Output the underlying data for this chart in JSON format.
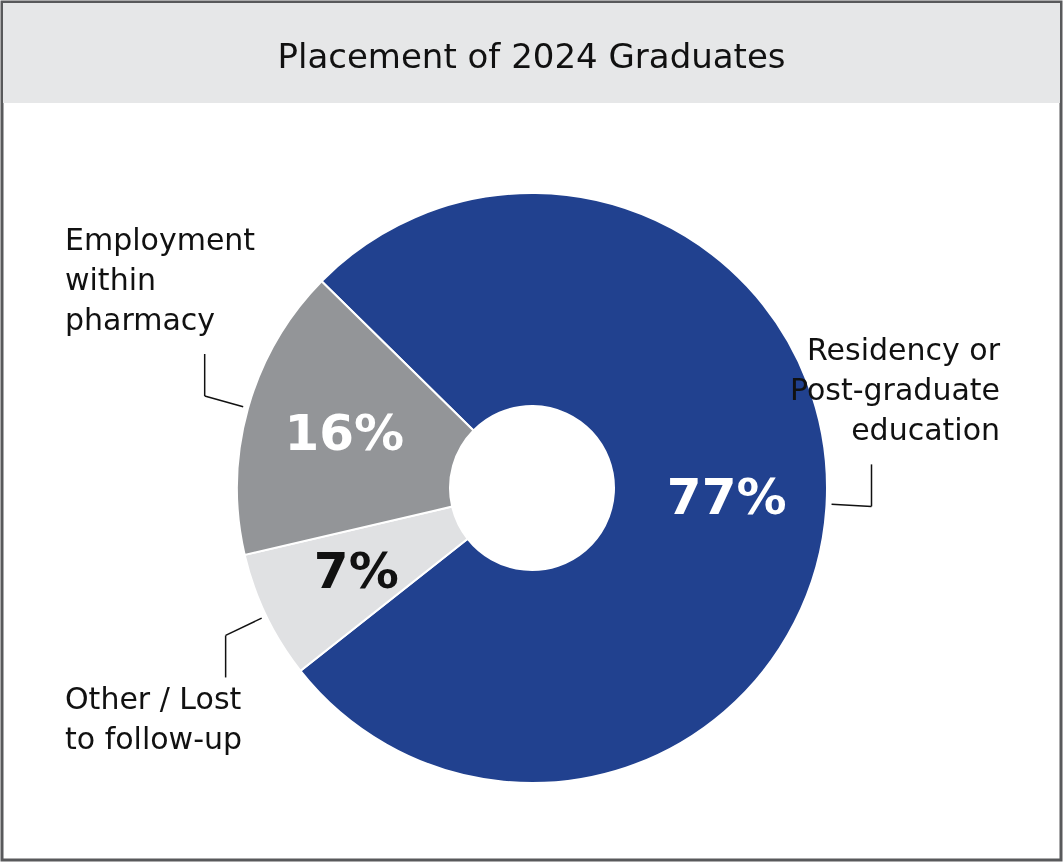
{
  "chart_data": {
    "type": "donut",
    "title": "Placement of 2024 Graduates",
    "categories": [
      "Residency or Post-graduate education",
      "Other / Lost to follow-up",
      "Employment within pharmacy"
    ],
    "values": [
      77,
      7,
      16
    ],
    "colors": [
      "#21418f",
      "#e0e1e3",
      "#939598"
    ],
    "value_labels": [
      "77%",
      "7%",
      "16%"
    ]
  }
}
